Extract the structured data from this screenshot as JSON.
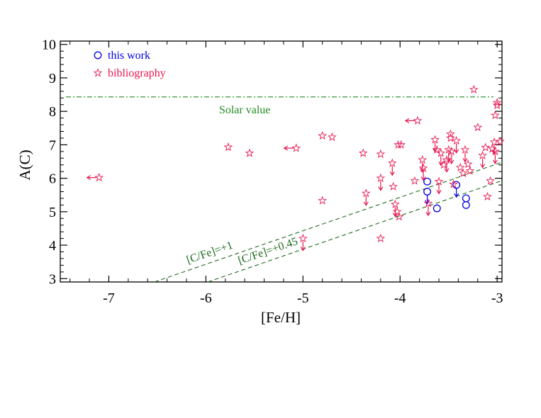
{
  "chart_data": {
    "type": "scatter",
    "title": "",
    "xlabel": "[Fe/H]",
    "ylabel": "A(C)",
    "xlim": [
      -7.5,
      -2.95
    ],
    "ylim": [
      2.9,
      10.1
    ],
    "xticks": [
      {
        "value": -7,
        "label": "-7"
      },
      {
        "value": -6,
        "label": "-6"
      },
      {
        "value": -5,
        "label": "-5"
      },
      {
        "value": -4,
        "label": "-4"
      },
      {
        "value": -3,
        "label": "-3"
      }
    ],
    "yticks": [
      {
        "value": 3,
        "label": "3"
      },
      {
        "value": 4,
        "label": "4"
      },
      {
        "value": 5,
        "label": "5"
      },
      {
        "value": 6,
        "label": "6"
      },
      {
        "value": 7,
        "label": "7"
      },
      {
        "value": 8,
        "label": "8"
      },
      {
        "value": 9,
        "label": "9"
      },
      {
        "value": 10,
        "label": "10"
      }
    ],
    "grid": false,
    "legend": {
      "placement": "top-left",
      "entries": [
        {
          "label": "this work",
          "series": "this_work",
          "color": "#0000e6",
          "marker": "circle"
        },
        {
          "label": "bibliography",
          "series": "bibliography",
          "color": "#e8174f",
          "marker": "star"
        }
      ]
    },
    "reference_lines": [
      {
        "name": "solar",
        "label": "Solar value",
        "type": "horizontal",
        "y": 8.43,
        "style": "dash-dot",
        "color": "#228b22"
      },
      {
        "name": "cfe1",
        "label": "[C/Fe]=+1",
        "type": "slope",
        "offset": 9.43,
        "style": "dashed",
        "color": "#1e6b1e"
      },
      {
        "name": "cfe045",
        "label": "[C/Fe]=+0.45",
        "type": "slope",
        "offset": 8.88,
        "style": "dashed",
        "color": "#1e6b1e"
      }
    ],
    "series": [
      {
        "name": "this work",
        "marker": "circle",
        "color": "#0000e6",
        "points": [
          {
            "x": -3.72,
            "y": 5.9
          },
          {
            "x": -3.72,
            "y": 5.6,
            "upper_limit": true
          },
          {
            "x": -3.62,
            "y": 5.1
          },
          {
            "x": -3.42,
            "y": 5.8,
            "upper_limit": true
          },
          {
            "x": -3.32,
            "y": 5.4
          },
          {
            "x": -3.32,
            "y": 5.2
          }
        ]
      },
      {
        "name": "bibliography",
        "marker": "star",
        "color": "#e8174f",
        "points": [
          {
            "x": -7.1,
            "y": 6.02,
            "x_upper_limit": true
          },
          {
            "x": -5.77,
            "y": 6.93
          },
          {
            "x": -5.55,
            "y": 6.75
          },
          {
            "x": -5.07,
            "y": 6.9,
            "x_upper_limit": true
          },
          {
            "x": -4.8,
            "y": 7.27
          },
          {
            "x": -4.8,
            "y": 5.33
          },
          {
            "x": -4.7,
            "y": 7.23
          },
          {
            "x": -5.0,
            "y": 4.2,
            "upper_limit": true
          },
          {
            "x": -4.38,
            "y": 6.75
          },
          {
            "x": -4.35,
            "y": 5.55,
            "upper_limit": true
          },
          {
            "x": -4.2,
            "y": 6.72
          },
          {
            "x": -4.2,
            "y": 6.0,
            "upper_limit": true
          },
          {
            "x": -4.2,
            "y": 4.2
          },
          {
            "x": -4.08,
            "y": 6.45,
            "upper_limit": true
          },
          {
            "x": -4.07,
            "y": 5.75
          },
          {
            "x": -4.05,
            "y": 5.22,
            "upper_limit": true
          },
          {
            "x": -4.03,
            "y": 5.0
          },
          {
            "x": -4.01,
            "y": 4.85
          },
          {
            "x": -4.02,
            "y": 7.0
          },
          {
            "x": -3.99,
            "y": 7.0
          },
          {
            "x": -3.85,
            "y": 5.92
          },
          {
            "x": -3.82,
            "y": 7.72,
            "x_upper_limit": true
          },
          {
            "x": -3.77,
            "y": 6.55,
            "upper_limit": true
          },
          {
            "x": -3.76,
            "y": 6.3,
            "upper_limit": true
          },
          {
            "x": -3.71,
            "y": 5.25,
            "upper_limit": true
          },
          {
            "x": -3.64,
            "y": 7.15,
            "upper_limit": true
          },
          {
            "x": -3.62,
            "y": 6.85
          },
          {
            "x": -3.6,
            "y": 5.9,
            "upper_limit": true
          },
          {
            "x": -3.58,
            "y": 6.75,
            "upper_limit": true
          },
          {
            "x": -3.55,
            "y": 6.4
          },
          {
            "x": -3.52,
            "y": 6.55,
            "upper_limit": true
          },
          {
            "x": -3.5,
            "y": 6.85,
            "upper_limit": true
          },
          {
            "x": -3.48,
            "y": 7.32
          },
          {
            "x": -3.48,
            "y": 7.2
          },
          {
            "x": -3.47,
            "y": 6.8,
            "upper_limit": true
          },
          {
            "x": -3.45,
            "y": 5.82
          },
          {
            "x": -3.42,
            "y": 7.12,
            "upper_limit": true
          },
          {
            "x": -3.38,
            "y": 6.32
          },
          {
            "x": -3.35,
            "y": 6.15
          },
          {
            "x": -3.33,
            "y": 6.85,
            "upper_limit": true
          },
          {
            "x": -3.3,
            "y": 6.42
          },
          {
            "x": -3.28,
            "y": 6.22
          },
          {
            "x": -3.24,
            "y": 8.65
          },
          {
            "x": -3.2,
            "y": 7.52
          },
          {
            "x": -3.15,
            "y": 6.68,
            "upper_limit": true
          },
          {
            "x": -3.12,
            "y": 6.92
          },
          {
            "x": -3.1,
            "y": 5.45
          },
          {
            "x": -3.07,
            "y": 5.92
          },
          {
            "x": -3.05,
            "y": 6.88
          },
          {
            "x": -3.03,
            "y": 7.08,
            "upper_limit": true
          },
          {
            "x": -3.02,
            "y": 7.88
          },
          {
            "x": -3.0,
            "y": 8.18
          },
          {
            "x": -3.0,
            "y": 8.26
          },
          {
            "x": -3.02,
            "y": 6.8,
            "upper_limit": true
          },
          {
            "x": -2.97,
            "y": 7.1
          }
        ]
      }
    ]
  }
}
